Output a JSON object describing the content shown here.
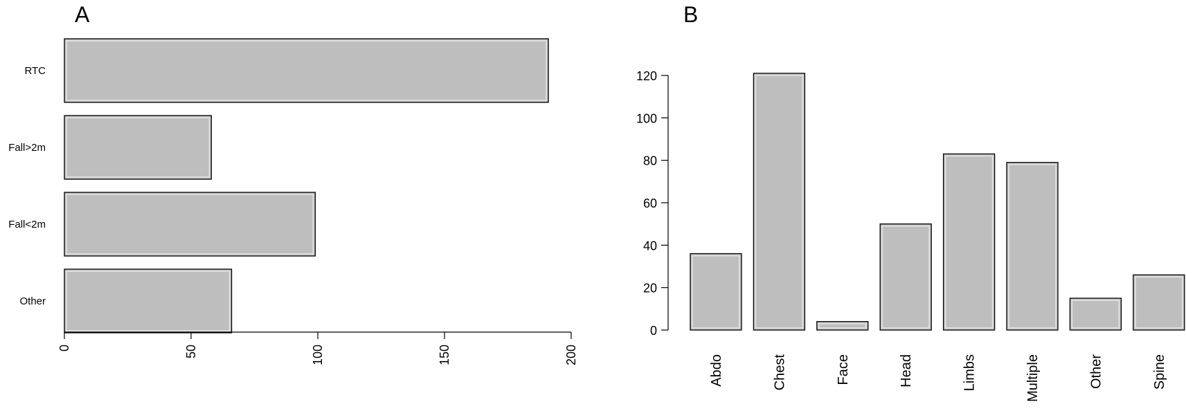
{
  "chart_data": [
    {
      "panel_label": "A",
      "type": "bar",
      "orientation": "horizontal",
      "categories": [
        "RTC",
        "Fall>2m",
        "Fall<2m",
        "Other"
      ],
      "values": [
        191,
        58,
        99,
        66
      ],
      "xlim": [
        0,
        200
      ],
      "xticks": [
        0,
        50,
        100,
        150,
        200
      ],
      "bar_color": "#bebebe",
      "grid": false,
      "legend": "none"
    },
    {
      "panel_label": "B",
      "type": "bar",
      "orientation": "vertical",
      "categories": [
        "Abdo",
        "Chest",
        "Face",
        "Head",
        "Limbs",
        "Multiple",
        "Other",
        "Spine"
      ],
      "values": [
        36,
        121,
        4,
        50,
        83,
        79,
        15,
        26
      ],
      "ylim": [
        0,
        120
      ],
      "yticks": [
        0,
        20,
        40,
        60,
        80,
        100,
        120
      ],
      "bar_color": "#bebebe",
      "grid": false,
      "legend": "none"
    }
  ]
}
